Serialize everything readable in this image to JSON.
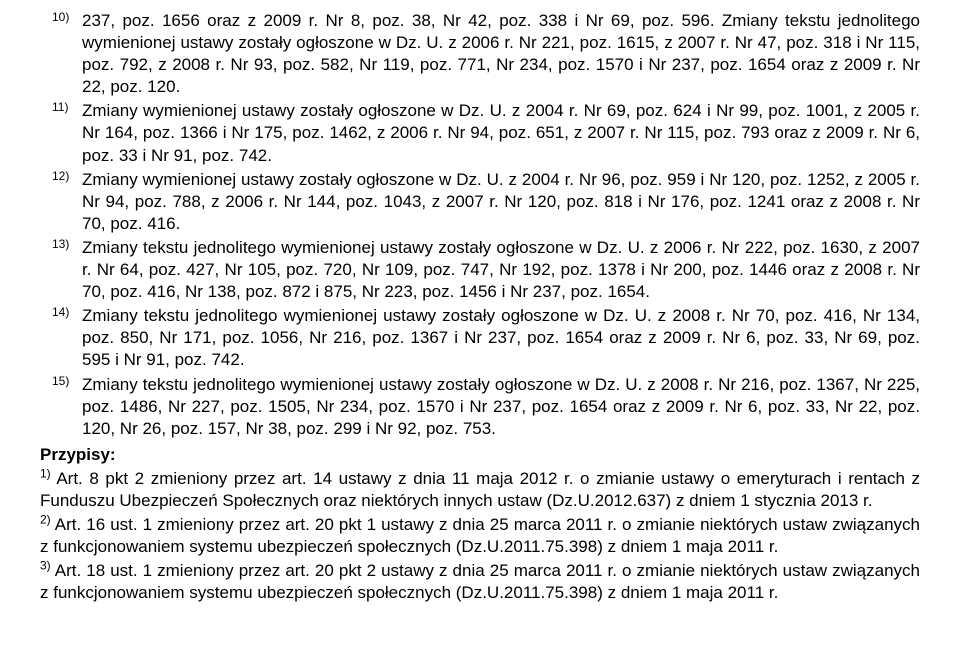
{
  "footnotes": [
    {
      "num": "10)",
      "text": "237, poz. 1656 oraz z 2009 r. Nr 8, poz. 38, Nr 42, poz. 338 i Nr 69, poz. 596. Zmiany tekstu jednolitego wymienionej ustawy zostały ogłoszone w Dz. U. z 2006 r. Nr 221, poz. 1615, z 2007 r. Nr 47, poz. 318 i Nr 115, poz. 792, z 2008 r. Nr 93, poz. 582, Nr 119, poz. 771, Nr 234, poz. 1570 i Nr 237, poz. 1654 oraz z 2009 r. Nr 22, poz. 120."
    },
    {
      "num": "11)",
      "text": "Zmiany wymienionej ustawy zostały ogłoszone w Dz. U. z 2004 r. Nr 69, poz. 624 i Nr 99, poz. 1001, z 2005 r. Nr 164, poz. 1366 i Nr 175, poz. 1462, z 2006 r. Nr 94, poz. 651, z 2007 r. Nr 115, poz. 793 oraz z 2009 r. Nr 6, poz. 33 i Nr 91, poz. 742."
    },
    {
      "num": "12)",
      "text": "Zmiany wymienionej ustawy zostały ogłoszone w Dz. U. z 2004 r. Nr 96, poz. 959 i Nr 120, poz. 1252, z 2005 r. Nr 94, poz. 788, z 2006 r. Nr 144, poz. 1043, z 2007 r. Nr 120, poz. 818 i Nr 176, poz. 1241 oraz z 2008 r. Nr 70, poz. 416."
    },
    {
      "num": "13)",
      "text": "Zmiany tekstu jednolitego wymienionej ustawy zostały ogłoszone w Dz. U. z 2006 r. Nr 222, poz. 1630, z 2007 r. Nr 64, poz. 427, Nr 105, poz. 720, Nr 109, poz. 747, Nr 192, poz. 1378 i Nr 200, poz. 1446 oraz z 2008 r. Nr 70, poz. 416, Nr 138, poz. 872 i 875, Nr 223, poz. 1456 i Nr 237, poz. 1654."
    },
    {
      "num": "14)",
      "text": "Zmiany tekstu jednolitego wymienionej ustawy zostały ogłoszone w Dz. U. z 2008 r. Nr 70, poz. 416, Nr 134, poz. 850, Nr 171, poz. 1056, Nr 216, poz. 1367 i Nr 237, poz. 1654 oraz z 2009 r. Nr 6, poz. 33, Nr 69, poz. 595 i Nr 91, poz. 742."
    },
    {
      "num": "15)",
      "text": "Zmiany tekstu jednolitego wymienionej ustawy zostały ogłoszone w Dz. U. z 2008 r. Nr 216, poz. 1367, Nr 225, poz. 1486, Nr 227, poz. 1505, Nr 234, poz. 1570 i Nr 237, poz. 1654 oraz z 2009 r. Nr 6, poz. 33, Nr 22, poz. 120, Nr 26, poz. 157, Nr 38, poz. 299 i Nr 92, poz. 753."
    }
  ],
  "przypisy_header": "Przypisy:",
  "przypisy": [
    {
      "num": "1)",
      "text": " Art. 8 pkt 2 zmieniony przez art. 14 ustawy z dnia 11 maja 2012 r. o zmianie ustawy o emeryturach i rentach z Funduszu Ubezpieczeń Społecznych oraz niektórych innych ustaw (Dz.U.2012.637) z dniem 1 stycznia 2013 r."
    },
    {
      "num": "2)",
      "text": " Art. 16 ust. 1 zmieniony przez art. 20 pkt 1 ustawy z dnia 25 marca 2011 r. o zmianie niektórych ustaw związanych z funkcjonowaniem systemu ubezpieczeń społecznych (Dz.U.2011.75.398) z dniem 1 maja 2011 r."
    },
    {
      "num": "3)",
      "text": " Art. 18 ust. 1 zmieniony przez art. 20 pkt 2 ustawy z dnia 25 marca 2011 r. o zmianie niektórych ustaw związanych z funkcjonowaniem systemu ubezpieczeń społecznych (Dz.U.2011.75.398) z dniem 1 maja 2011 r."
    }
  ]
}
